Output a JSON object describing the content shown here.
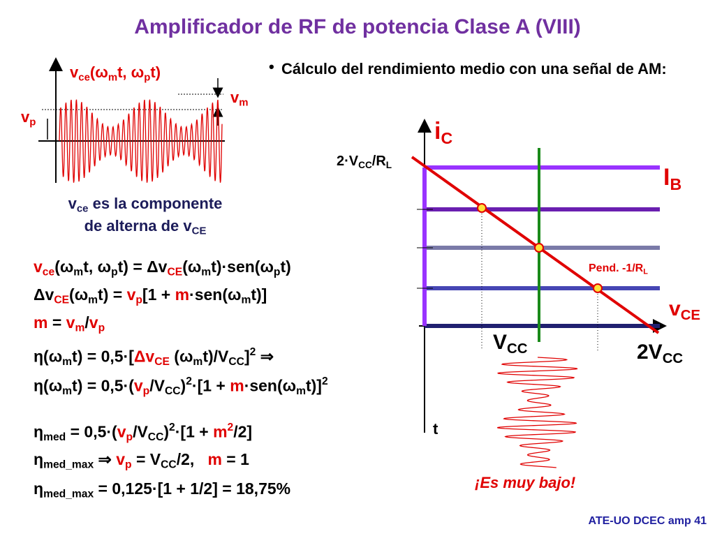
{
  "title": "Amplificador de RF de potencia Clase A (VIII)",
  "bullet": "Cálculo del rendimiento medio con una señal de AM:",
  "waveform": {
    "label": [
      "v",
      "ce",
      "(ω",
      "m",
      "t, ω",
      "p",
      "t)"
    ],
    "vm": [
      "v",
      "m"
    ],
    "vp": [
      "v",
      "p"
    ],
    "caption_1": [
      "v",
      "ce",
      " es la componente"
    ],
    "caption_2": [
      "de alterna de v",
      "CE"
    ]
  },
  "formulas": [
    [
      "v",
      "ce",
      "(ω",
      "m",
      "t, ω",
      "p",
      "t) = Δ",
      "v",
      "CE",
      "(ω",
      "m",
      "t)·sen(ω",
      "p",
      "t)"
    ],
    [
      "Δv",
      "CE",
      "(ω",
      "m",
      "t) = ",
      "v",
      "p",
      "[1 + ",
      "m",
      "·sen(ω",
      "m",
      "t)]"
    ],
    [
      "m",
      " = ",
      "v",
      "m",
      "/",
      "v",
      "p"
    ],
    [
      "η(ω",
      "m",
      "t) = 0,5·[",
      "Δv",
      "CE",
      " (ω",
      "m",
      "t)/V",
      "CC",
      "]",
      "2",
      " ⇒"
    ],
    [
      "η(ω",
      "m",
      "t) = 0,5·(",
      "v",
      "p",
      "/V",
      "CC",
      ")",
      "2",
      "·[1 + ",
      "m",
      "·sen(ω",
      "m",
      "t)]",
      "2"
    ],
    [
      "η",
      "med",
      " = 0,5·(",
      "v",
      "p",
      "/V",
      "CC",
      ")",
      "2",
      "·[1 + ",
      "m",
      "2",
      "/2]"
    ],
    [
      "η",
      "med_max",
      " ⇒ ",
      "v",
      "p",
      " = V",
      "CC",
      "/2,   ",
      "m",
      " = 1"
    ],
    [
      "η",
      "med_max",
      " = 0,125·[1 + 1/2] = 18,75%"
    ]
  ],
  "graph": {
    "ic": [
      "i",
      "C"
    ],
    "ic_max": [
      "2·V",
      "CC",
      "/R",
      "L"
    ],
    "ib": [
      "I",
      "B"
    ],
    "slope": [
      "Pend. -1/R",
      "L"
    ],
    "vce": [
      "v",
      "CE"
    ],
    "vcc": [
      "V",
      "CC"
    ],
    "vcc2": [
      "2V",
      "CC"
    ],
    "t": "t",
    "note": "¡Es muy bajo!"
  },
  "footer": "ATE-UO DCEC amp 41"
}
